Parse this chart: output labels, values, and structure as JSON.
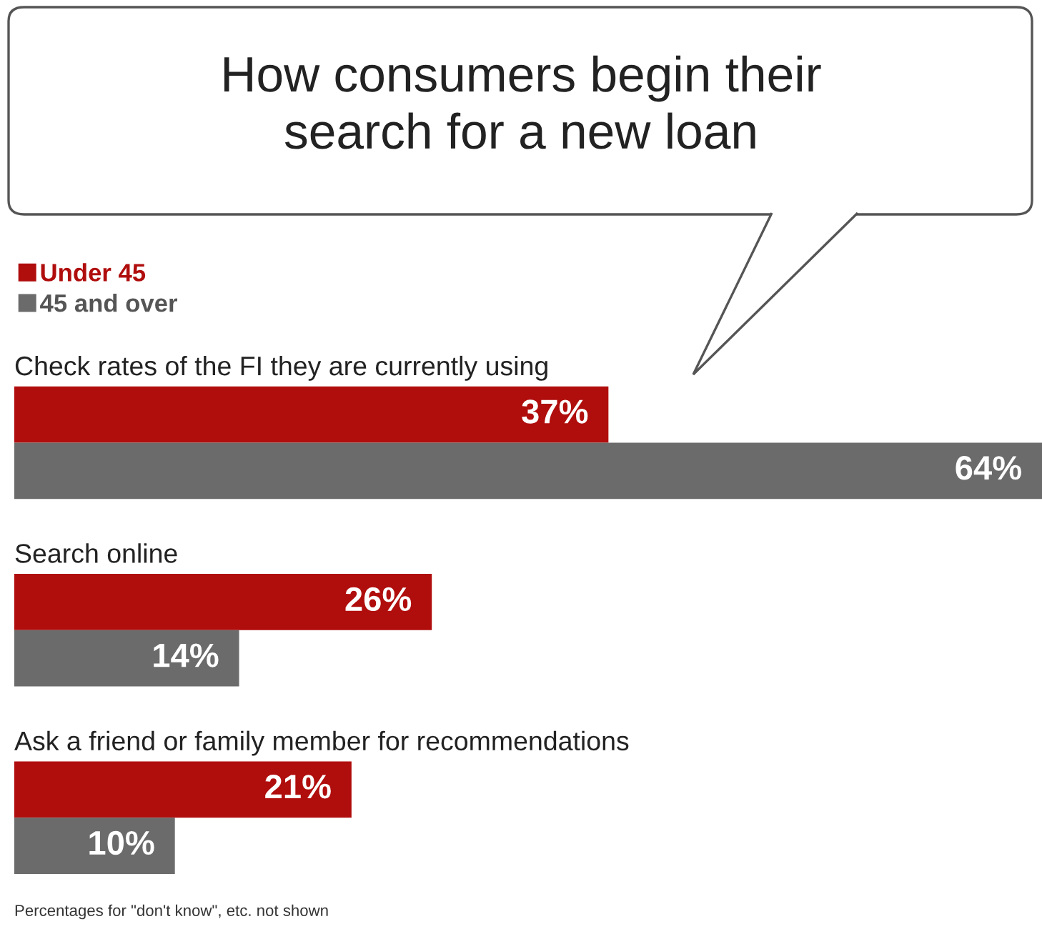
{
  "chart_data": {
    "type": "bar",
    "orientation": "horizontal",
    "title": "How consumers begin their\nsearch for a new loan",
    "categories": [
      "Check rates of the FI they are currently using",
      "Search online",
      "Ask a friend or family member for recommendations"
    ],
    "series": [
      {
        "name": "Under 45",
        "color": "#b00d0d",
        "values": [
          37,
          26,
          21
        ],
        "value_labels": [
          "37%",
          "26%",
          "21%"
        ]
      },
      {
        "name": "45 and over",
        "color": "#6b6b6b",
        "values": [
          64,
          14,
          10
        ],
        "value_labels": [
          "64%",
          "14%",
          "10%"
        ]
      }
    ],
    "legend": "top left",
    "annotations": [
      "Percentages for \"don't know\", etc. not shown"
    ]
  }
}
